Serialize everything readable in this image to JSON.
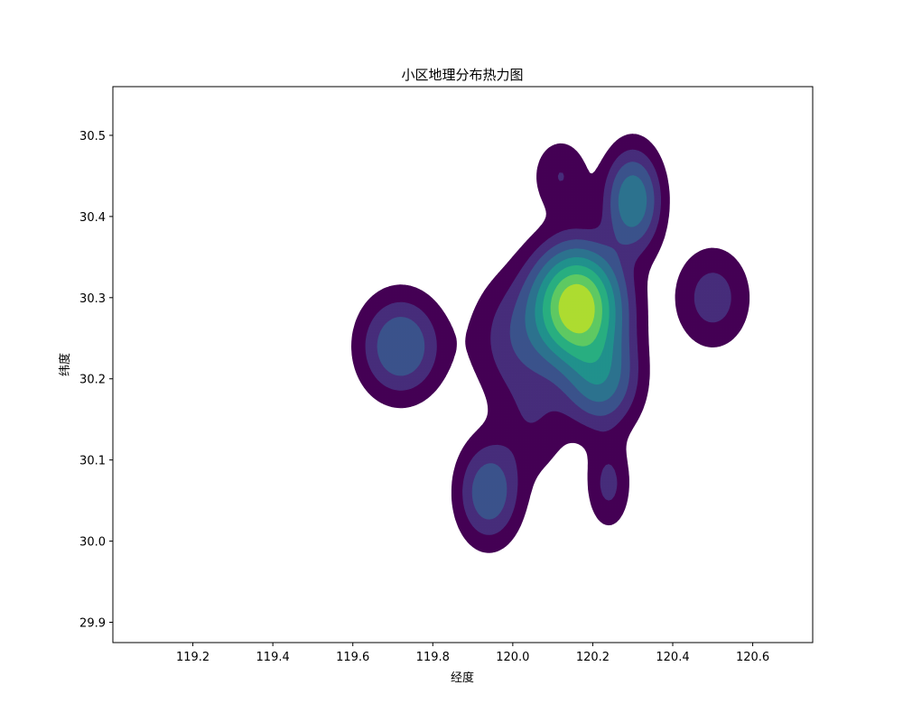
{
  "chart_data": {
    "type": "heatmap",
    "subtype": "filled-contour (kernel density)",
    "title": "小区地理分布热力图",
    "xlabel": "经度",
    "ylabel": "纬度",
    "xlim": [
      119.0,
      120.75
    ],
    "ylim": [
      29.875,
      30.56
    ],
    "xticks": [
      119.2,
      119.4,
      119.6,
      119.8,
      120.0,
      120.2,
      120.4,
      120.6
    ],
    "xtick_labels": [
      "119.2",
      "119.4",
      "119.6",
      "119.8",
      "120.0",
      "120.2",
      "120.4",
      "120.6"
    ],
    "yticks": [
      29.9,
      30.0,
      30.1,
      30.2,
      30.3,
      30.4,
      30.5
    ],
    "ytick_labels": [
      "29.9",
      "30.0",
      "30.1",
      "30.2",
      "30.3",
      "30.4",
      "30.5"
    ],
    "grid": false,
    "colormap": [
      "#440154",
      "#472d7b",
      "#3b528b",
      "#2c728e",
      "#21918c",
      "#28ae80",
      "#5ec962",
      "#addc30"
    ],
    "density_centers": [
      {
        "lon": 120.16,
        "lat": 30.29,
        "sigma_lon": 0.07,
        "sigma_lat": 0.045,
        "weight": 1.0
      },
      {
        "lon": 120.22,
        "lat": 30.2,
        "sigma_lon": 0.06,
        "sigma_lat": 0.04,
        "weight": 0.35
      },
      {
        "lon": 120.3,
        "lat": 30.42,
        "sigma_lon": 0.045,
        "sigma_lat": 0.04,
        "weight": 0.4
      },
      {
        "lon": 120.12,
        "lat": 30.45,
        "sigma_lon": 0.045,
        "sigma_lat": 0.03,
        "weight": 0.12
      },
      {
        "lon": 119.72,
        "lat": 30.24,
        "sigma_lon": 0.065,
        "sigma_lat": 0.04,
        "weight": 0.3
      },
      {
        "lon": 119.94,
        "lat": 30.06,
        "sigma_lon": 0.05,
        "sigma_lat": 0.04,
        "weight": 0.28
      },
      {
        "lon": 120.24,
        "lat": 30.07,
        "sigma_lon": 0.035,
        "sigma_lat": 0.035,
        "weight": 0.14
      },
      {
        "lon": 120.5,
        "lat": 30.3,
        "sigma_lon": 0.06,
        "sigma_lat": 0.04,
        "weight": 0.16
      },
      {
        "lon": 120.0,
        "lat": 30.25,
        "sigma_lon": 0.07,
        "sigma_lat": 0.05,
        "weight": 0.15
      },
      {
        "lon": 120.05,
        "lat": 30.15,
        "sigma_lon": 0.06,
        "sigma_lat": 0.05,
        "weight": 0.1
      }
    ],
    "contour_levels": [
      0.05,
      0.12,
      0.2,
      0.3,
      0.42,
      0.55,
      0.7,
      0.85
    ]
  }
}
